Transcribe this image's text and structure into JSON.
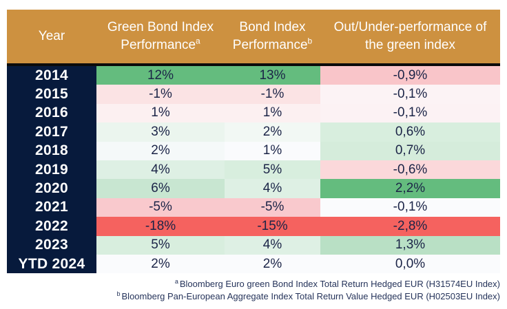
{
  "header": {
    "columns": [
      {
        "label": "Year",
        "sup": ""
      },
      {
        "label": "Green Bond Index Performance",
        "sup": "a"
      },
      {
        "label": "Bond Index Performance",
        "sup": "b"
      },
      {
        "label": "Out/Under-performance of the green index",
        "sup": ""
      }
    ]
  },
  "rows": [
    {
      "year": "2014",
      "cells": [
        {
          "value": "12%",
          "bg": "#64BC7E"
        },
        {
          "value": "13%",
          "bg": "#64BC7E"
        },
        {
          "value": "-0,9%",
          "bg": "#F9C5C9"
        }
      ]
    },
    {
      "year": "2015",
      "cells": [
        {
          "value": "-1%",
          "bg": "#FBE3E4"
        },
        {
          "value": "-1%",
          "bg": "#FBE3E4"
        },
        {
          "value": "-0,1%",
          "bg": "#FCF3F5"
        }
      ]
    },
    {
      "year": "2016",
      "cells": [
        {
          "value": "1%",
          "bg": "#FCF0F1"
        },
        {
          "value": "1%",
          "bg": "#FCF0F1"
        },
        {
          "value": "-0,1%",
          "bg": "#FCF2F4"
        }
      ]
    },
    {
      "year": "2017",
      "cells": [
        {
          "value": "3%",
          "bg": "#EBF5EE"
        },
        {
          "value": "2%",
          "bg": "#F2F8F4"
        },
        {
          "value": "0,6%",
          "bg": "#D8EEDE"
        }
      ]
    },
    {
      "year": "2018",
      "cells": [
        {
          "value": "2%",
          "bg": "#F5F9F9"
        },
        {
          "value": "1%",
          "bg": "#FAFBFD"
        },
        {
          "value": "0,7%",
          "bg": "#D5ECDB"
        }
      ]
    },
    {
      "year": "2019",
      "cells": [
        {
          "value": "4%",
          "bg": "#DEF0E4"
        },
        {
          "value": "5%",
          "bg": "#D8EEDE"
        },
        {
          "value": "-0,6%",
          "bg": "#FBD8DA"
        }
      ]
    },
    {
      "year": "2020",
      "cells": [
        {
          "value": "6%",
          "bg": "#C8E6D1"
        },
        {
          "value": "4%",
          "bg": "#DEF0E4"
        },
        {
          "value": "2,2%",
          "bg": "#64BC7E"
        }
      ]
    },
    {
      "year": "2021",
      "cells": [
        {
          "value": "-5%",
          "bg": "#F9C9CD"
        },
        {
          "value": "-5%",
          "bg": "#F9C9CD"
        },
        {
          "value": "-0,1%",
          "bg": "#FAFBFD"
        }
      ]
    },
    {
      "year": "2022",
      "cells": [
        {
          "value": "-18%",
          "bg": "#F5625F"
        },
        {
          "value": "-15%",
          "bg": "#F5625F"
        },
        {
          "value": "-2,8%",
          "bg": "#F5625F"
        }
      ]
    },
    {
      "year": "2023",
      "cells": [
        {
          "value": "5%",
          "bg": "#D8EEDE"
        },
        {
          "value": "4%",
          "bg": "#DEF0E4"
        },
        {
          "value": "1,3%",
          "bg": "#B9E0C5"
        }
      ]
    },
    {
      "year": "YTD 2024",
      "cells": [
        {
          "value": "2%",
          "bg": "#FAFBFD"
        },
        {
          "value": "2%",
          "bg": "#FAFBFD"
        },
        {
          "value": "0,0%",
          "bg": "#FAFBFD"
        }
      ]
    }
  ],
  "footnotes": [
    {
      "sup": "a",
      "text": "Bloomberg Euro green Bond Index Total Return Hedged EUR (H31574EU Index)"
    },
    {
      "sup": "b",
      "text": "Bloomberg Pan-European Aggregate Index Total Return Value Hedged EUR (H02503EU Index)"
    }
  ],
  "colors": {
    "header_bg": "#CD9140",
    "header_text": "#FFFFFF",
    "year_col_bg": "#071A3C",
    "divider": "#0B0B0B",
    "text": "#1B2447",
    "footnote_text": "#25335A",
    "positive_strong": "#64BC7E",
    "negative_strong": "#F5625F"
  },
  "chart_data": {
    "type": "table",
    "title": "",
    "columns": [
      "Year",
      "Green Bond Index Performance",
      "Bond Index Performance",
      "Out/Under-performance of the green index"
    ],
    "rows": [
      [
        "2014",
        "12%",
        "13%",
        "-0,9%"
      ],
      [
        "2015",
        "-1%",
        "-1%",
        "-0,1%"
      ],
      [
        "2016",
        "1%",
        "1%",
        "-0,1%"
      ],
      [
        "2017",
        "3%",
        "2%",
        "0,6%"
      ],
      [
        "2018",
        "2%",
        "1%",
        "0,7%"
      ],
      [
        "2019",
        "4%",
        "5%",
        "-0,6%"
      ],
      [
        "2020",
        "6%",
        "4%",
        "2,2%"
      ],
      [
        "2021",
        "-5%",
        "-5%",
        "-0,1%"
      ],
      [
        "2022",
        "-18%",
        "-15%",
        "-2,8%"
      ],
      [
        "2023",
        "5%",
        "4%",
        "1,3%"
      ],
      [
        "YTD 2024",
        "2%",
        "2%",
        "0,0%"
      ]
    ],
    "legend": "cell shading: green = outperformance / positive, red = underperformance / negative",
    "footnotes": [
      "a Bloomberg Euro green Bond Index Total Return Hedged EUR (H31574EU Index)",
      "b Bloomberg Pan-European Aggregate Index Total Return Value Hedged EUR (H02503EU Index)"
    ]
  }
}
